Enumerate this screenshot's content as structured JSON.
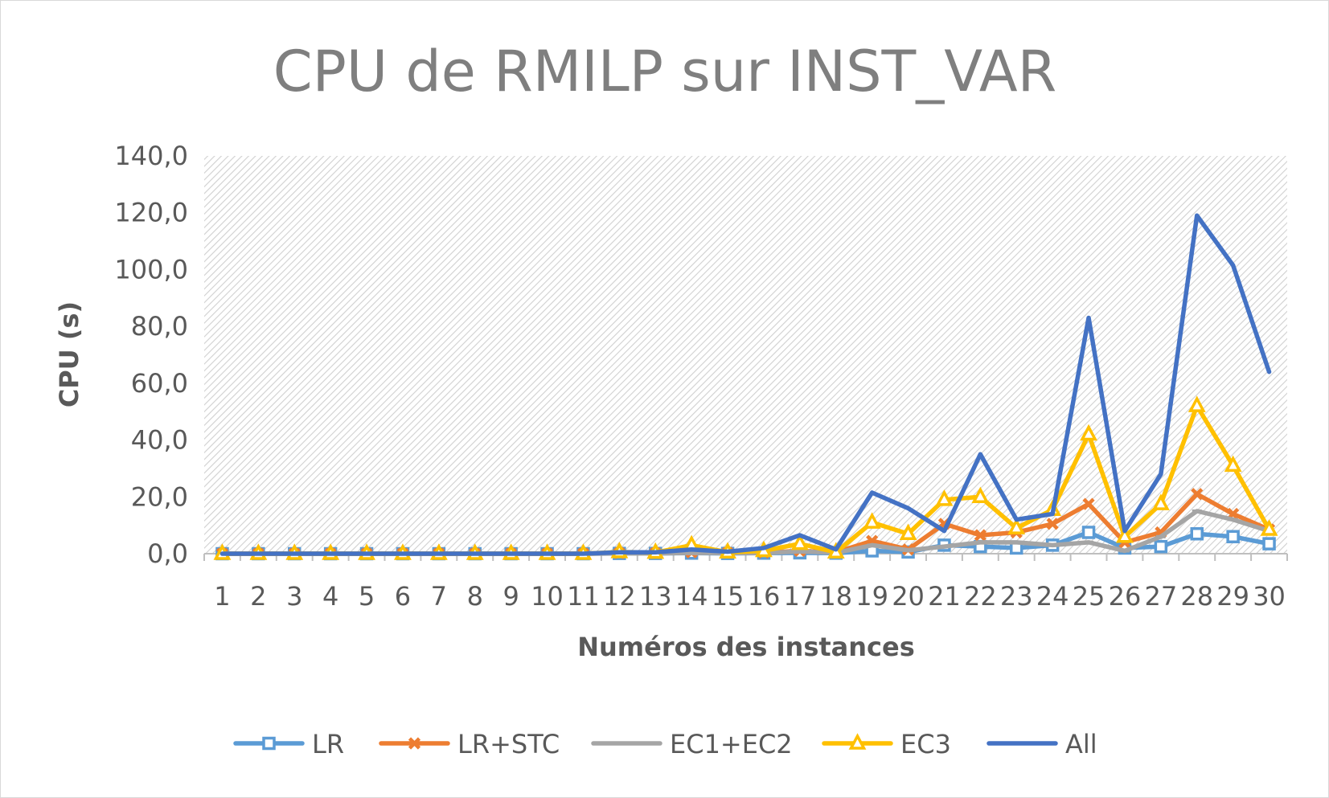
{
  "chart_data": {
    "type": "line",
    "title": "CPU de RMILP sur INST_VAR",
    "xlabel": "Numéros des instances",
    "ylabel": "CPU (s)",
    "ylim": [
      0,
      140
    ],
    "yticks": [
      "0,0",
      "20,0",
      "40,0",
      "60,0",
      "80,0",
      "100,0",
      "120,0",
      "140,0"
    ],
    "categories": [
      "1",
      "2",
      "3",
      "4",
      "5",
      "6",
      "7",
      "8",
      "9",
      "10",
      "11",
      "12",
      "13",
      "14",
      "15",
      "16",
      "17",
      "18",
      "19",
      "20",
      "21",
      "22",
      "23",
      "24",
      "25",
      "26",
      "27",
      "28",
      "29",
      "30"
    ],
    "grid": false,
    "plot_background": "diagonal hatch",
    "legend_position": "bottom",
    "series": [
      {
        "name": "LR",
        "color": "#5b9bd5",
        "marker": "square",
        "values": [
          0,
          0,
          0,
          0,
          0,
          0,
          0,
          0,
          0,
          0,
          0,
          0.1,
          0.1,
          0.2,
          0.1,
          0.2,
          0.3,
          0.2,
          1,
          0.6,
          3,
          2.5,
          2,
          3,
          7.5,
          2,
          2.5,
          7,
          6,
          3.5
        ]
      },
      {
        "name": "LR+STC",
        "color": "#ed7d31",
        "marker": "x",
        "values": [
          0,
          0,
          0,
          0,
          0,
          0,
          0,
          0,
          0,
          0,
          0,
          0.2,
          0.2,
          0.5,
          0.3,
          0.4,
          1,
          0.5,
          4.5,
          1.5,
          10.5,
          6.5,
          7.5,
          10.5,
          17.5,
          4,
          7.5,
          21,
          14,
          8.5
        ]
      },
      {
        "name": "EC1+EC2",
        "color": "#a5a5a5",
        "marker": "dash",
        "values": [
          0,
          0,
          0,
          0,
          0,
          0,
          0,
          0,
          0,
          0,
          0,
          0.1,
          0.1,
          0.3,
          0.2,
          0.2,
          0.8,
          0.3,
          3,
          1.2,
          2.5,
          4,
          4,
          3,
          4,
          1,
          6,
          15,
          12,
          8
        ]
      },
      {
        "name": "EC3",
        "color": "#ffc000",
        "marker": "triangle",
        "values": [
          0,
          0,
          0,
          0,
          0,
          0,
          0,
          0,
          0,
          0,
          0,
          0.6,
          0.4,
          3,
          0.5,
          1,
          3.5,
          0.5,
          11,
          7,
          19,
          20,
          9,
          15.5,
          42,
          6,
          17.5,
          52,
          31,
          8.5
        ]
      },
      {
        "name": "All",
        "color": "#4472c4",
        "marker": "none",
        "values": [
          0,
          0,
          0,
          0,
          0,
          0,
          0,
          0,
          0,
          0,
          0,
          0.5,
          0.5,
          1.5,
          0.7,
          2,
          6.5,
          1.5,
          21.5,
          16,
          8,
          35,
          12,
          14,
          83,
          8,
          28,
          119,
          101.5,
          64
        ]
      }
    ]
  }
}
